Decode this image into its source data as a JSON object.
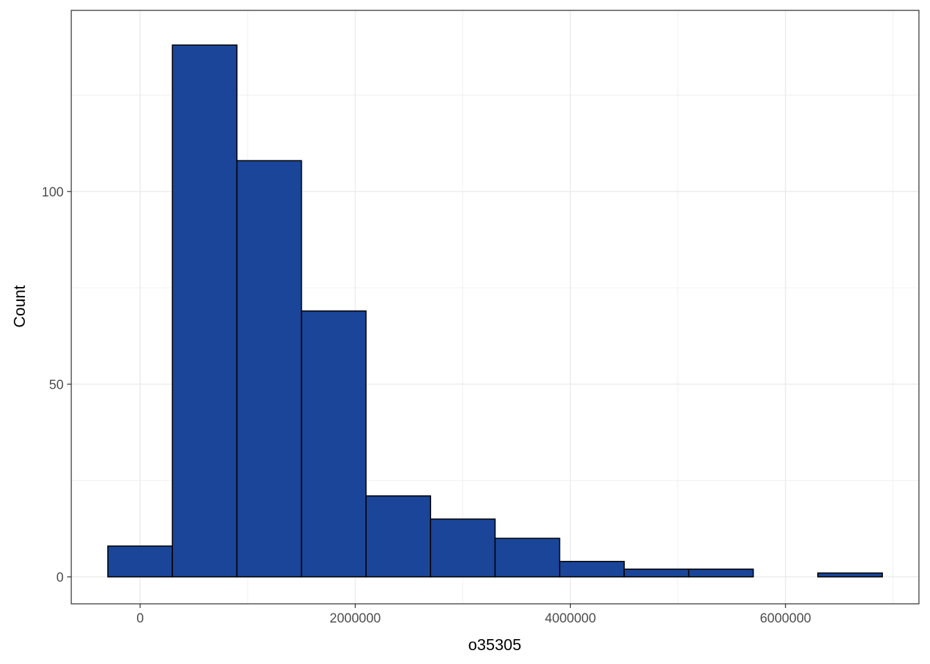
{
  "chart_data": {
    "type": "bar",
    "subtype": "histogram",
    "title": "",
    "xlabel": "o35305",
    "ylabel": "Count",
    "bin_edges": [
      -300000,
      300000,
      900000,
      1500000,
      2100000,
      2700000,
      3300000,
      3900000,
      4500000,
      5100000,
      5700000,
      6300000,
      6900000
    ],
    "counts": [
      8,
      138,
      108,
      69,
      21,
      15,
      10,
      4,
      2,
      2,
      0,
      1
    ],
    "xlim": [
      -640000,
      7240000
    ],
    "ylim": [
      -7,
      147
    ],
    "x_ticks": [
      0,
      2000000,
      4000000,
      6000000
    ],
    "x_tick_labels": [
      "0",
      "2000000",
      "4000000",
      "6000000"
    ],
    "y_ticks": [
      0,
      50,
      100
    ],
    "y_tick_labels": [
      "0",
      "50",
      "100"
    ],
    "grid": true,
    "colors": {
      "bar_fill": "#1A4599",
      "bar_outline": "#000000",
      "grid": "#EBEBEB",
      "panel_border": "#333333",
      "tick_text": "#4D4D4D"
    }
  }
}
